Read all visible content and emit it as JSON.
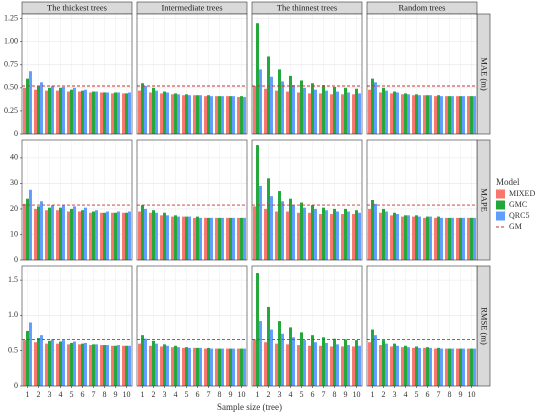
{
  "chart_data": {
    "type": "bar",
    "x_label": "Sample size (tree)",
    "legend_title": "Model",
    "categories": [
      "1",
      "2",
      "3",
      "4",
      "5",
      "6",
      "7",
      "8",
      "9",
      "10"
    ],
    "columns": [
      "The thickest trees",
      "Intermediate trees",
      "The thinnest trees",
      "Random trees"
    ],
    "series": [
      {
        "name": "MIXED",
        "color": "#f8766d"
      },
      {
        "name": "GMC",
        "color": "#22a83a"
      },
      {
        "name": "QRC5",
        "color": "#619cff"
      }
    ],
    "reference": {
      "name": "GM",
      "color": "#c8322e"
    },
    "rows": [
      {
        "label": "MAE (m)",
        "ylim": [
          0,
          1.3
        ],
        "yticks": [
          0,
          0.25,
          {
            "value": 0.5,
            "label": "0.50"
          },
          0.75,
          {
            "value": 1,
            "label": "1.00"
          },
          1.25
        ],
        "gm": 0.52
      },
      {
        "label": "MAPE",
        "ylim": [
          0,
          47
        ],
        "yticks": [
          0,
          10,
          20,
          30,
          40
        ],
        "gm": 21.5
      },
      {
        "label": "RMSE (m)",
        "ylim": [
          0,
          1.7
        ],
        "yticks": [
          0,
          0.5,
          {
            "value": 1,
            "label": "1.0"
          },
          1.5
        ],
        "gm": 0.66
      }
    ],
    "panels": [
      [
        [
          [
            0.5,
            0.48,
            0.47,
            0.47,
            0.46,
            0.46,
            0.45,
            0.45,
            0.44,
            0.44
          ],
          [
            0.6,
            0.52,
            0.5,
            0.5,
            0.48,
            0.47,
            0.46,
            0.45,
            0.45,
            0.44
          ],
          [
            0.68,
            0.56,
            0.52,
            0.51,
            0.5,
            0.48,
            0.46,
            0.45,
            0.45,
            0.45
          ]
        ],
        [
          [
            0.47,
            0.45,
            0.44,
            0.43,
            0.42,
            0.42,
            0.41,
            0.41,
            0.41,
            0.4
          ],
          [
            0.55,
            0.5,
            0.46,
            0.44,
            0.43,
            0.42,
            0.42,
            0.41,
            0.41,
            0.41
          ],
          [
            0.52,
            0.47,
            0.45,
            0.43,
            0.42,
            0.42,
            0.41,
            0.41,
            0.41,
            0.4
          ]
        ],
        [
          [
            0.52,
            0.49,
            0.47,
            0.46,
            0.45,
            0.44,
            0.44,
            0.43,
            0.43,
            0.43
          ],
          [
            1.2,
            0.84,
            0.7,
            0.63,
            0.58,
            0.55,
            0.53,
            0.51,
            0.5,
            0.49
          ],
          [
            0.7,
            0.62,
            0.57,
            0.53,
            0.5,
            0.48,
            0.47,
            0.46,
            0.45,
            0.44
          ]
        ],
        [
          [
            0.48,
            0.45,
            0.44,
            0.43,
            0.42,
            0.42,
            0.41,
            0.41,
            0.41,
            0.41
          ],
          [
            0.6,
            0.5,
            0.46,
            0.44,
            0.43,
            0.42,
            0.42,
            0.41,
            0.41,
            0.41
          ],
          [
            0.56,
            0.47,
            0.45,
            0.43,
            0.42,
            0.42,
            0.41,
            0.41,
            0.41,
            0.41
          ]
        ]
      ],
      [
        [
          [
            22,
            20,
            19.5,
            19.5,
            19,
            19,
            18.5,
            18.5,
            18.5,
            18.5
          ],
          [
            24,
            21,
            20.5,
            20.5,
            20,
            19.5,
            19,
            18.5,
            18.5,
            18.5
          ],
          [
            27.5,
            23,
            21.5,
            21.5,
            21,
            20.5,
            19.5,
            19,
            19,
            19
          ]
        ],
        [
          [
            19,
            18.5,
            17.5,
            17,
            17,
            16.5,
            16.5,
            16.5,
            16.5,
            16.5
          ],
          [
            21.5,
            19.5,
            18.5,
            17.5,
            17,
            17,
            16.5,
            16.5,
            16.5,
            16.5
          ],
          [
            20,
            18.5,
            17.5,
            17,
            17,
            16.5,
            16.5,
            16.5,
            16.5,
            16.5
          ]
        ],
        [
          [
            21,
            20,
            19,
            19,
            18.5,
            18.5,
            18,
            18,
            18,
            18
          ],
          [
            45,
            32,
            27,
            24,
            22.5,
            21.5,
            20.5,
            20,
            20,
            19.5
          ],
          [
            29,
            25,
            23,
            21.5,
            20.5,
            20,
            19.5,
            19,
            19,
            18.5
          ]
        ],
        [
          [
            20,
            18.5,
            17.5,
            17,
            17,
            16.5,
            16.5,
            16.5,
            16.5,
            16.5
          ],
          [
            23.5,
            20,
            18.5,
            17.5,
            17.5,
            17,
            17,
            16.5,
            16.5,
            16.5
          ],
          [
            22,
            19,
            18,
            17.5,
            17,
            17,
            16.5,
            16.5,
            16.5,
            16.5
          ]
        ]
      ],
      [
        [
          [
            0.65,
            0.62,
            0.6,
            0.6,
            0.59,
            0.59,
            0.58,
            0.58,
            0.57,
            0.57
          ],
          [
            0.78,
            0.68,
            0.64,
            0.63,
            0.61,
            0.6,
            0.59,
            0.58,
            0.57,
            0.57
          ],
          [
            0.9,
            0.72,
            0.66,
            0.65,
            0.63,
            0.61,
            0.59,
            0.58,
            0.58,
            0.57
          ]
        ],
        [
          [
            0.6,
            0.57,
            0.56,
            0.55,
            0.54,
            0.54,
            0.53,
            0.53,
            0.53,
            0.53
          ],
          [
            0.72,
            0.64,
            0.59,
            0.57,
            0.55,
            0.54,
            0.54,
            0.53,
            0.53,
            0.53
          ],
          [
            0.67,
            0.6,
            0.57,
            0.55,
            0.54,
            0.54,
            0.53,
            0.53,
            0.53,
            0.53
          ]
        ],
        [
          [
            0.66,
            0.62,
            0.6,
            0.59,
            0.58,
            0.57,
            0.57,
            0.56,
            0.56,
            0.56
          ],
          [
            1.6,
            1.12,
            0.92,
            0.83,
            0.76,
            0.72,
            0.69,
            0.67,
            0.66,
            0.65
          ],
          [
            0.92,
            0.8,
            0.74,
            0.69,
            0.65,
            0.62,
            0.61,
            0.59,
            0.58,
            0.57
          ]
        ],
        [
          [
            0.62,
            0.58,
            0.56,
            0.55,
            0.54,
            0.54,
            0.53,
            0.53,
            0.53,
            0.53
          ],
          [
            0.8,
            0.65,
            0.6,
            0.57,
            0.56,
            0.55,
            0.54,
            0.53,
            0.53,
            0.53
          ],
          [
            0.72,
            0.6,
            0.57,
            0.55,
            0.54,
            0.54,
            0.53,
            0.53,
            0.53,
            0.53
          ]
        ]
      ]
    ]
  }
}
